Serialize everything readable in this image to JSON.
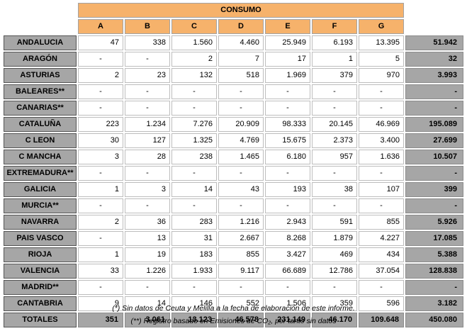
{
  "header": {
    "group_label": "CONSUMO",
    "columns": [
      "A",
      "B",
      "C",
      "D",
      "E",
      "F",
      "G"
    ]
  },
  "rows": [
    {
      "region": "ANDALUCIA",
      "values": [
        "47",
        "338",
        "1.560",
        "4.460",
        "25.949",
        "6.193",
        "13.395"
      ],
      "total": "51.942"
    },
    {
      "region": "ARAGÓN",
      "values": [
        "-",
        "-",
        "2",
        "7",
        "17",
        "1",
        "5"
      ],
      "total": "32"
    },
    {
      "region": "ASTURIAS",
      "values": [
        "2",
        "23",
        "132",
        "518",
        "1.969",
        "379",
        "970"
      ],
      "total": "3.993"
    },
    {
      "region": "BALEARES**",
      "values": [
        "-",
        "-",
        "-",
        "-",
        "-",
        "-",
        "-"
      ],
      "total": "-"
    },
    {
      "region": "CANARIAS**",
      "values": [
        "-",
        "-",
        "-",
        "-",
        "-",
        "-",
        "-"
      ],
      "total": "-"
    },
    {
      "region": "CATALUÑA",
      "values": [
        "223",
        "1.234",
        "7.276",
        "20.909",
        "98.333",
        "20.145",
        "46.969"
      ],
      "total": "195.089"
    },
    {
      "region": "C LEON",
      "values": [
        "30",
        "127",
        "1.325",
        "4.769",
        "15.675",
        "2.373",
        "3.400"
      ],
      "total": "27.699"
    },
    {
      "region": "C MANCHA",
      "values": [
        "3",
        "28",
        "238",
        "1.465",
        "6.180",
        "957",
        "1.636"
      ],
      "total": "10.507"
    },
    {
      "region": "EXTREMADURA**",
      "values": [
        "-",
        "-",
        "-",
        "-",
        "-",
        "-",
        "-"
      ],
      "total": "-"
    },
    {
      "region": "GALICIA",
      "values": [
        "1",
        "3",
        "14",
        "43",
        "193",
        "38",
        "107"
      ],
      "total": "399"
    },
    {
      "region": "MURCIA**",
      "values": [
        "-",
        "-",
        "-",
        "-",
        "-",
        "-",
        "-"
      ],
      "total": "-"
    },
    {
      "region": "NAVARRA",
      "values": [
        "2",
        "36",
        "283",
        "1.216",
        "2.943",
        "591",
        "855"
      ],
      "total": "5.926"
    },
    {
      "region": "PAIS VASCO",
      "values": [
        "-",
        "13",
        "31",
        "2.667",
        "8.268",
        "1.879",
        "4.227"
      ],
      "total": "17.085"
    },
    {
      "region": "RIOJA",
      "values": [
        "1",
        "19",
        "183",
        "855",
        "3.427",
        "469",
        "434"
      ],
      "total": "5.388"
    },
    {
      "region": "VALENCIA",
      "values": [
        "33",
        "1.226",
        "1.933",
        "9.117",
        "66.689",
        "12.786",
        "37.054"
      ],
      "total": "128.838"
    },
    {
      "region": "MADRID**",
      "values": [
        "-",
        "-",
        "-",
        "-",
        "-",
        "-",
        "-"
      ],
      "total": "-"
    },
    {
      "region": "CANTABRIA",
      "values": [
        "9",
        "14",
        "146",
        "552",
        "1.506",
        "359",
        "596"
      ],
      "total": "3.182"
    }
  ],
  "totals": {
    "label": "TOTALES",
    "values": [
      "351",
      "3.061",
      "13.123",
      "46.578",
      "231.149",
      "46.170",
      "109.648"
    ],
    "total": "450.080"
  },
  "notes": {
    "note1": "(*) Sin datos de Ceuta y Melilla a la fecha de elaboración de este informe.",
    "note2": "(**) Registro basado en Emisiones de CO₂, por tanto sin datos"
  },
  "colors": {
    "header_orange": "#f6b26b",
    "region_gray": "#a6a6a6"
  }
}
